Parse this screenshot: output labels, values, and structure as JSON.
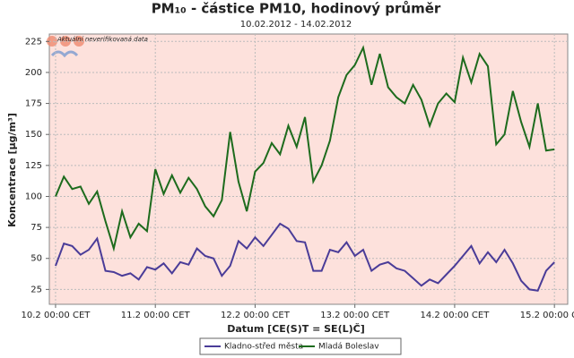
{
  "chart_data": {
    "type": "line",
    "title": "PM₁₀ - částice PM10, hodinový průměr",
    "subtitle": "10.02.2012 - 14.02.2012",
    "annotation": "Aktuální neverifikovaná data",
    "xlabel": "Datum [CE(S)T = SE(L)Č]",
    "ylabel": "Koncentrace [µg/m³]",
    "x": [
      0,
      2,
      4,
      6,
      8,
      10,
      12,
      14,
      16,
      18,
      20,
      22,
      24,
      26,
      28,
      30,
      32,
      34,
      36,
      38,
      40,
      42,
      44,
      46,
      48,
      50,
      52,
      54,
      56,
      58,
      60,
      62,
      64,
      66,
      68,
      70,
      72,
      74,
      76,
      78,
      80,
      82,
      84,
      86,
      88,
      90,
      92,
      94,
      96,
      98,
      100,
      102,
      104,
      106,
      108,
      110,
      112,
      114,
      116,
      118,
      120
    ],
    "series": [
      {
        "name": "Kladno-střed města",
        "color": "#4a3c98",
        "values": [
          44,
          62,
          60,
          53,
          57,
          66,
          40,
          39,
          36,
          38,
          33,
          43,
          41,
          46,
          38,
          47,
          45,
          58,
          52,
          50,
          36,
          44,
          64,
          58,
          67,
          60,
          69,
          78,
          74,
          64,
          63,
          40,
          40,
          57,
          55,
          63,
          52,
          57,
          40,
          45,
          47,
          42,
          40,
          34,
          28,
          33,
          30,
          37,
          44,
          52,
          60,
          46,
          55,
          47,
          57,
          46,
          32,
          25,
          24,
          40,
          47
        ]
      },
      {
        "name": "Mladá Boleslav",
        "color": "#1d6b1d",
        "values": [
          100,
          116,
          106,
          108,
          94,
          104,
          80,
          58,
          88,
          67,
          78,
          72,
          122,
          102,
          117,
          103,
          115,
          106,
          92,
          84,
          97,
          152,
          112,
          88,
          120,
          127,
          143,
          134,
          157,
          140,
          164,
          112,
          125,
          145,
          180,
          198,
          206,
          220,
          190,
          215,
          188,
          180,
          175,
          190,
          178,
          157,
          175,
          183,
          176,
          212,
          192,
          215,
          205,
          142,
          150,
          185,
          160,
          140,
          175,
          137,
          138
        ]
      }
    ],
    "xlim": [
      -1.5,
      123.2
    ],
    "xticks": [
      {
        "value": 0,
        "label": "10.2 00:00 CET"
      },
      {
        "value": 24,
        "label": "11.2 00:00 CET"
      },
      {
        "value": 48,
        "label": "12.2 00:00 CET"
      },
      {
        "value": 72,
        "label": "13.2 00:00 CET"
      },
      {
        "value": 96,
        "label": "14.2 00:00 CET"
      },
      {
        "value": 120,
        "label": "15.2 00:00 CET"
      }
    ],
    "ylim": [
      13,
      231
    ],
    "yticks": [
      25,
      50,
      75,
      100,
      125,
      150,
      175,
      200,
      225
    ],
    "grid": true
  }
}
